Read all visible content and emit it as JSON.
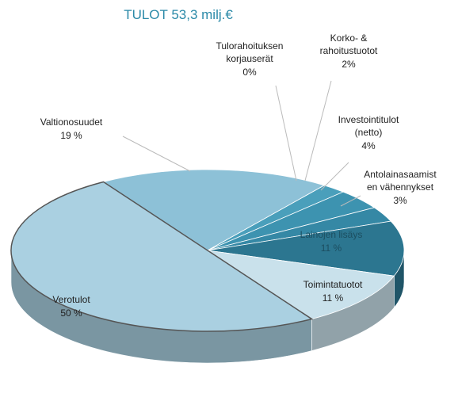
{
  "chart_data": {
    "type": "pie",
    "title": "TULOT 53,3 milj.€",
    "categories": [
      [
        "Valtionosuudet"
      ],
      [
        "Tulorahoituksen",
        "korjauserät"
      ],
      [
        "Korko- &",
        "rahoitustuotot"
      ],
      [
        "Investointitulot",
        "(netto)"
      ],
      [
        "Antolainasaamist",
        "en vähennykset"
      ],
      [
        "Lainojen lisäys"
      ],
      [
        "Toimintatuotot"
      ],
      [
        "Verotulot"
      ]
    ],
    "values": [
      19,
      0,
      2,
      4,
      3,
      11,
      11,
      50
    ],
    "value_labels": [
      "19 %",
      "0%",
      "2%",
      "4%",
      "3%",
      "11 %",
      "11 %",
      "50 %"
    ],
    "colors": [
      "#8dc1d7",
      "#4a9fbb",
      "#4a9fbb",
      "#3d93b0",
      "#3588a5",
      "#2c7690",
      "#c9e1eb",
      "#aad0e1"
    ]
  }
}
